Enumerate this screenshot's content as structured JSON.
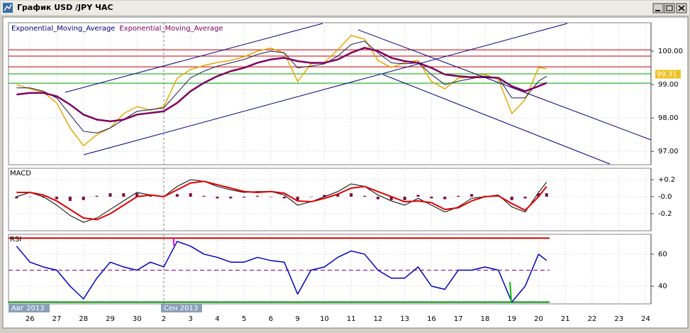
{
  "window": {
    "title": "График USD /JPY ЧАС"
  },
  "chart_data": [
    {
      "type": "line",
      "xlim": [
        -0.8,
        23.2
      ],
      "ylim": [
        96.6,
        100.85
      ],
      "yticks": [
        {
          "value": 97,
          "label": "97.00"
        },
        {
          "value": 98,
          "label": "98.00"
        },
        {
          "value": 99,
          "label": "99.00"
        },
        {
          "value": 100,
          "label": "100.00"
        }
      ],
      "x": [
        -0.5,
        0,
        0.5,
        1,
        1.5,
        2,
        2.5,
        3,
        3.5,
        4,
        4.5,
        5,
        5.5,
        6,
        6.5,
        7,
        7.5,
        8,
        8.5,
        9,
        9.5,
        10,
        10.5,
        11,
        11.5,
        12,
        12.5,
        13,
        13.5,
        14,
        14.5,
        15,
        15.5,
        16,
        16.5,
        17,
        17.5,
        18,
        18.5,
        19,
        19.3
      ],
      "price": {
        "color": "#e8a800",
        "values": [
          99.0,
          98.87,
          98.77,
          98.45,
          97.7,
          97.17,
          97.5,
          97.7,
          98.13,
          98.34,
          98.23,
          98.34,
          99.19,
          99.45,
          99.57,
          99.66,
          99.72,
          99.83,
          100.0,
          100.09,
          99.94,
          99.09,
          99.62,
          99.66,
          100.04,
          100.47,
          100.36,
          99.72,
          99.51,
          99.66,
          99.72,
          99.09,
          98.87,
          99.19,
          99.23,
          99.3,
          99.15,
          98.13,
          98.55,
          99.51,
          99.47
        ]
      },
      "price_tag": 99.31,
      "series": [
        {
          "name": "Exponential_Moving_Average",
          "color": "#1a1a50",
          "values": [
            98.9,
            98.9,
            98.8,
            98.6,
            98.1,
            97.6,
            97.55,
            97.7,
            97.95,
            98.2,
            98.25,
            98.3,
            98.75,
            99.2,
            99.4,
            99.55,
            99.65,
            99.75,
            99.9,
            100.0,
            99.95,
            99.5,
            99.55,
            99.62,
            99.85,
            100.2,
            100.3,
            99.95,
            99.65,
            99.62,
            99.65,
            99.3,
            99.0,
            99.1,
            99.18,
            99.25,
            99.2,
            98.6,
            98.6,
            99.1,
            99.25
          ]
        },
        {
          "name": "Exponential_Moving_Average",
          "color": "#800060",
          "values": [
            98.7,
            98.75,
            98.75,
            98.65,
            98.4,
            98.1,
            97.95,
            97.9,
            97.95,
            98.1,
            98.15,
            98.2,
            98.45,
            98.8,
            99.05,
            99.25,
            99.4,
            99.5,
            99.65,
            99.75,
            99.8,
            99.7,
            99.65,
            99.65,
            99.75,
            99.95,
            100.1,
            100.0,
            99.8,
            99.7,
            99.65,
            99.5,
            99.3,
            99.25,
            99.22,
            99.22,
            99.2,
            98.95,
            98.8,
            98.95,
            99.05
          ]
        }
      ],
      "levels": [
        {
          "value": 100.04,
          "color": "#c00000"
        },
        {
          "value": 99.85,
          "color": "#c00000"
        },
        {
          "value": 99.53,
          "color": "#c00000"
        },
        {
          "value": 99.32,
          "color": "#00a000"
        },
        {
          "value": 99.04,
          "color": "#00a000"
        }
      ],
      "grid": true
    },
    {
      "type": "line",
      "title": "MACD",
      "xlim": [
        -0.8,
        23.2
      ],
      "ylim": [
        -0.4,
        0.333
      ],
      "yticks": [
        {
          "value": 0.2,
          "label": "+0.2"
        },
        {
          "value": 0,
          "label": "-0.0"
        },
        {
          "value": -0.2,
          "label": "-0.2"
        }
      ],
      "x": [
        -0.5,
        0,
        0.5,
        1,
        1.5,
        2,
        2.5,
        3,
        3.5,
        4,
        4.5,
        5,
        5.5,
        6,
        6.5,
        7,
        7.5,
        8,
        8.5,
        9,
        9.5,
        10,
        10.5,
        11,
        11.5,
        12,
        12.5,
        13,
        13.5,
        14,
        14.5,
        15,
        15.5,
        16,
        16.5,
        17,
        17.5,
        18,
        18.5,
        19,
        19.3
      ],
      "histogram": {
        "color": "#800040",
        "values": [
          -0.02,
          0.0,
          -0.01,
          -0.03,
          -0.05,
          -0.04,
          0.01,
          0.04,
          0.04,
          0.04,
          0.01,
          0.0,
          0.03,
          0.04,
          0.01,
          -0.02,
          -0.02,
          -0.01,
          0.01,
          0.0,
          -0.02,
          -0.04,
          0.0,
          0.02,
          0.03,
          0.04,
          0.01,
          -0.03,
          -0.04,
          -0.04,
          0.02,
          -0.02,
          -0.03,
          0.01,
          0.03,
          0.01,
          0.01,
          -0.04,
          -0.02,
          0.04,
          0.04
        ]
      },
      "lines": [
        {
          "color": "#000000",
          "values": [
            0.0,
            0.05,
            0.0,
            -0.1,
            -0.22,
            -0.3,
            -0.25,
            -0.15,
            -0.05,
            0.05,
            0.02,
            0.0,
            0.12,
            0.2,
            0.18,
            0.12,
            0.08,
            0.05,
            0.06,
            0.06,
            0.02,
            -0.1,
            -0.06,
            0.0,
            0.06,
            0.15,
            0.12,
            0.02,
            -0.05,
            -0.1,
            -0.02,
            -0.1,
            -0.18,
            -0.12,
            -0.02,
            0.0,
            0.02,
            -0.12,
            -0.18,
            0.05,
            0.17
          ]
        },
        {
          "color": "#e00000",
          "values": [
            0.05,
            0.05,
            0.02,
            -0.05,
            -0.15,
            -0.25,
            -0.27,
            -0.2,
            -0.1,
            0.0,
            0.02,
            0.0,
            0.08,
            0.16,
            0.18,
            0.14,
            0.1,
            0.06,
            0.05,
            0.06,
            0.04,
            -0.05,
            -0.06,
            -0.02,
            0.03,
            0.1,
            0.12,
            0.06,
            0.0,
            -0.06,
            -0.05,
            -0.07,
            -0.15,
            -0.13,
            -0.05,
            0.0,
            0.01,
            -0.08,
            -0.16,
            0.0,
            0.12
          ]
        }
      ],
      "grid": true
    },
    {
      "type": "line",
      "title": "RSI",
      "xlim": [
        -0.8,
        23.2
      ],
      "ylim": [
        28.9,
        72.4
      ],
      "yticks": [
        40,
        60
      ],
      "x": [
        -0.5,
        0,
        0.5,
        1,
        1.5,
        2,
        2.5,
        3,
        3.5,
        4,
        4.5,
        5,
        5.5,
        6,
        6.5,
        7,
        7.5,
        8,
        8.5,
        9,
        9.5,
        10,
        10.5,
        11,
        11.5,
        12,
        12.5,
        13,
        13.5,
        14,
        14.5,
        15,
        15.5,
        16,
        16.5,
        17,
        17.5,
        18,
        18.5,
        19,
        19.3
      ],
      "lines": [
        {
          "color": "#0000c0",
          "values": [
            65,
            55,
            52,
            50,
            40,
            32,
            45,
            55,
            52,
            50,
            55,
            52,
            68,
            65,
            60,
            58,
            55,
            55,
            58,
            56,
            55,
            35,
            50,
            52,
            58,
            62,
            60,
            50,
            45,
            45,
            52,
            40,
            38,
            50,
            50,
            52,
            50,
            30,
            40,
            60,
            56
          ]
        }
      ],
      "levels": [
        {
          "value": 70,
          "color": "#d00000"
        },
        {
          "value": 50,
          "color": "#800080",
          "dash": true
        },
        {
          "value": 30,
          "color": "#009000"
        }
      ],
      "xticks": [
        {
          "value": 0,
          "label": "26"
        },
        {
          "value": 1,
          "label": "27"
        },
        {
          "value": 2,
          "label": "28"
        },
        {
          "value": 3,
          "label": "29"
        },
        {
          "value": 4,
          "label": "30"
        },
        {
          "value": 5,
          "label": "2"
        },
        {
          "value": 6,
          "label": "3"
        },
        {
          "value": 7,
          "label": "4"
        },
        {
          "value": 8,
          "label": "5"
        },
        {
          "value": 9,
          "label": "6"
        },
        {
          "value": 10,
          "label": "9"
        },
        {
          "value": 11,
          "label": "10"
        },
        {
          "value": 12,
          "label": "11"
        },
        {
          "value": 13,
          "label": "12"
        },
        {
          "value": 14,
          "label": "13"
        },
        {
          "value": 15,
          "label": "16"
        },
        {
          "value": 16,
          "label": "17"
        },
        {
          "value": 17,
          "label": "18"
        },
        {
          "value": 18,
          "label": "19"
        },
        {
          "value": 19,
          "label": "20"
        },
        {
          "value": 20,
          "label": "21"
        },
        {
          "value": 21,
          "label": "22"
        },
        {
          "value": 22,
          "label": "23"
        },
        {
          "value": 23,
          "label": "24"
        }
      ],
      "period_labels": [
        {
          "value": -0.8,
          "label": "Авг 2013"
        },
        {
          "value": 5,
          "label": "Сен 2013"
        }
      ],
      "grid": true
    }
  ]
}
